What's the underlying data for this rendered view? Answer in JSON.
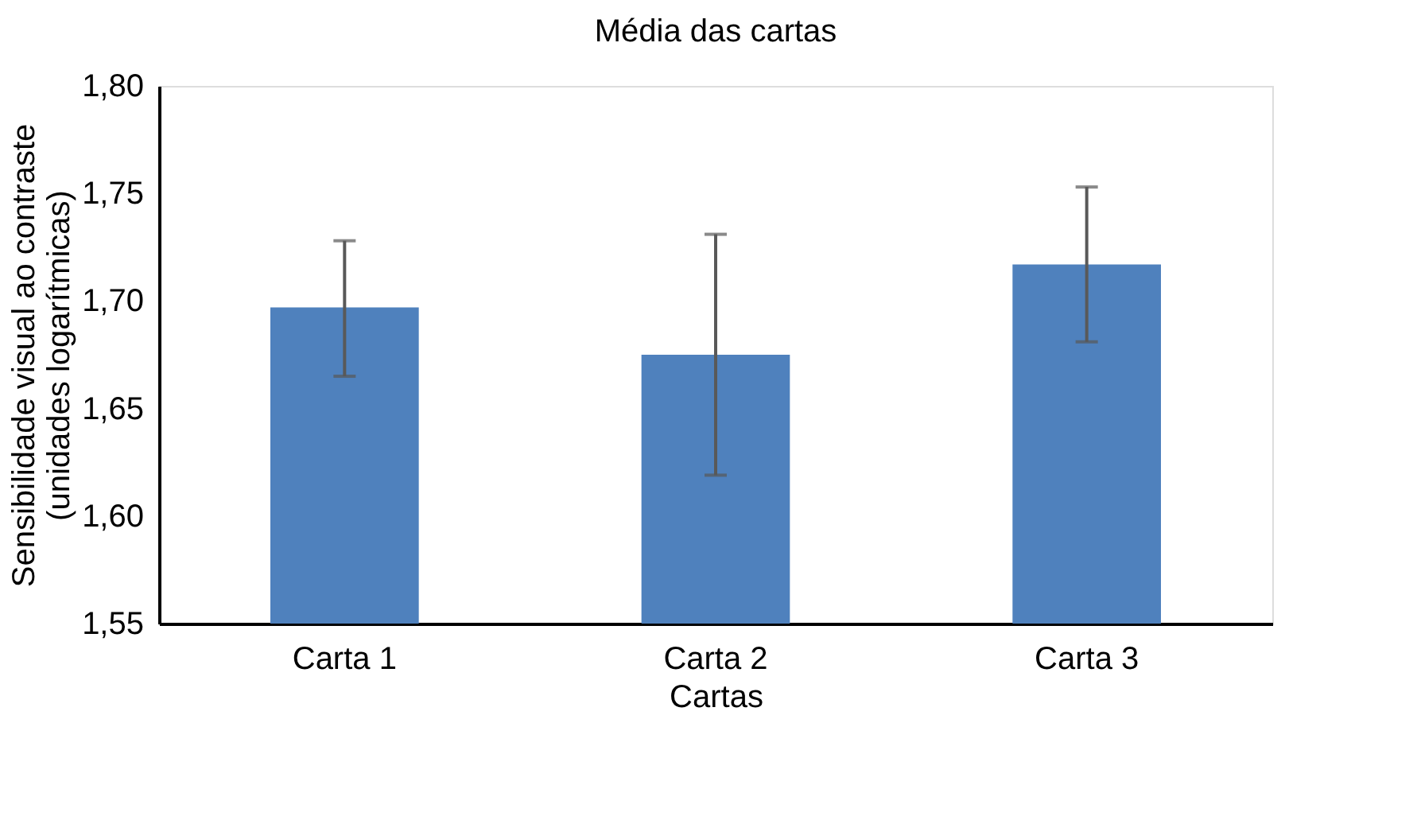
{
  "chart_data": {
    "type": "bar",
    "title": "Média das cartas",
    "xlabel": "Cartas",
    "ylabel": "Sensibilidade visual ao contraste\n(unidades logarítmicas)",
    "categories": [
      "Carta 1",
      "Carta 2",
      "Carta 3"
    ],
    "values": [
      1.697,
      1.675,
      1.717
    ],
    "color": "#4f81bd",
    "errors": [
      [
        1.665,
        1.728
      ],
      [
        1.619,
        1.731
      ],
      [
        1.681,
        1.753
      ]
    ],
    "ylim": [
      1.55,
      1.8
    ],
    "yticks": [
      {
        "value": 1.55,
        "label": "1,55"
      },
      {
        "value": 1.6,
        "label": "1,60"
      },
      {
        "value": 1.65,
        "label": "1,65"
      },
      {
        "value": 1.7,
        "label": "1,70"
      },
      {
        "value": 1.75,
        "label": "1,75"
      },
      {
        "value": 1.8,
        "label": "1,80"
      }
    ],
    "grid": false
  }
}
